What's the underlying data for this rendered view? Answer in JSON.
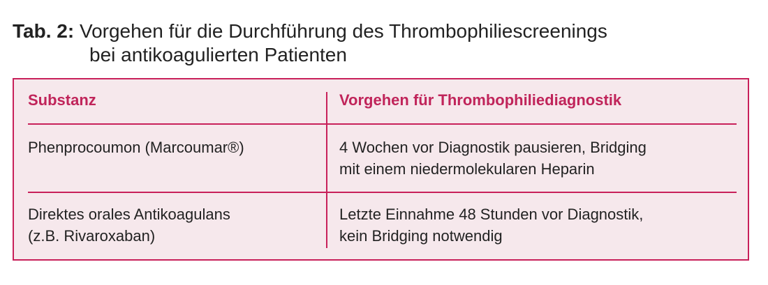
{
  "caption": {
    "label": "Tab. 2:",
    "line1": "Vorgehen für die Durchführung des Thrombophiliescreenings",
    "line2": "bei antikoagulierten Patienten"
  },
  "table": {
    "headers": [
      "Substanz",
      "Vorgehen für Thrombophiliediagnostik"
    ],
    "rows": [
      {
        "substance": [
          "Phenprocoumon (Marcoumar®)"
        ],
        "procedure": [
          "4 Wochen vor Diagnostik pausieren, Bridging",
          "mit einem niedermolekularen Heparin"
        ]
      },
      {
        "substance": [
          "Direktes orales Antikoagulans",
          "(z.B. Rivaroxaban)"
        ],
        "procedure": [
          "Letzte Einnahme 48 Stunden vor Diagnostik,",
          "kein Bridging notwendig"
        ]
      }
    ]
  },
  "colors": {
    "accent": "#c8205a",
    "background": "#f6e8ec"
  }
}
